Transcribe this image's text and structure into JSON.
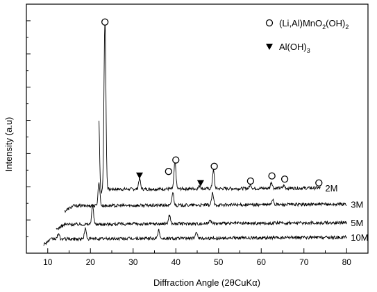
{
  "chart_data": {
    "type": "line",
    "xlabel": "Diffraction Angle  (2θCuKα)",
    "ylabel": "Intensity (a.u)",
    "xlim": [
      5,
      85
    ],
    "x_ticks": [
      10,
      20,
      30,
      40,
      50,
      60,
      70,
      80
    ],
    "y_scale": "arbitrary",
    "grid": false,
    "legend": {
      "placement": "top-right",
      "entries": [
        {
          "marker": "open-circle",
          "label_main": "(Li,Al)MnO",
          "sub1": "2",
          "label_mid": "(OH)",
          "sub2": "2"
        },
        {
          "marker": "filled-triangle-down",
          "label_main": "Al(OH)",
          "sub1": "3"
        }
      ]
    },
    "series": [
      {
        "name": "2M",
        "x_range": [
          22,
          74
        ],
        "baseline": 100,
        "peaks": [
          [
            21.9,
            128
          ],
          [
            23.4,
            270
          ],
          [
            31.5,
            17
          ],
          [
            39.8,
            43
          ],
          [
            45.6,
            5
          ],
          [
            48.8,
            29
          ],
          [
            57.5,
            6
          ],
          [
            62.4,
            10
          ],
          [
            65.3,
            4
          ]
        ]
      },
      {
        "name": "3M",
        "x_range": [
          14,
          80
        ],
        "baseline": 74,
        "peaks": [
          [
            22.0,
            36
          ],
          [
            39.3,
            20
          ],
          [
            48.6,
            18
          ],
          [
            62.7,
            9
          ]
        ]
      },
      {
        "name": "5M",
        "x_range": [
          12,
          80
        ],
        "baseline": 45,
        "peaks": [
          [
            20.5,
            30
          ],
          [
            38.5,
            14
          ],
          [
            48.0,
            7
          ]
        ]
      },
      {
        "name": "10M",
        "x_range": [
          9,
          80
        ],
        "baseline": 22,
        "peaks": [
          [
            12.5,
            8
          ],
          [
            18.8,
            16
          ],
          [
            36.0,
            13
          ],
          [
            44.9,
            10
          ]
        ]
      }
    ],
    "annotations": {
      "circles": [
        [
          23.4,
          362
        ],
        [
          38.3,
          128
        ],
        [
          40.0,
          146
        ],
        [
          49.0,
          136
        ],
        [
          57.5,
          113
        ],
        [
          62.5,
          121
        ],
        [
          65.5,
          116
        ],
        [
          73.5,
          110
        ]
      ],
      "triangles": [
        [
          31.5,
          122
        ],
        [
          45.8,
          110
        ]
      ]
    }
  }
}
